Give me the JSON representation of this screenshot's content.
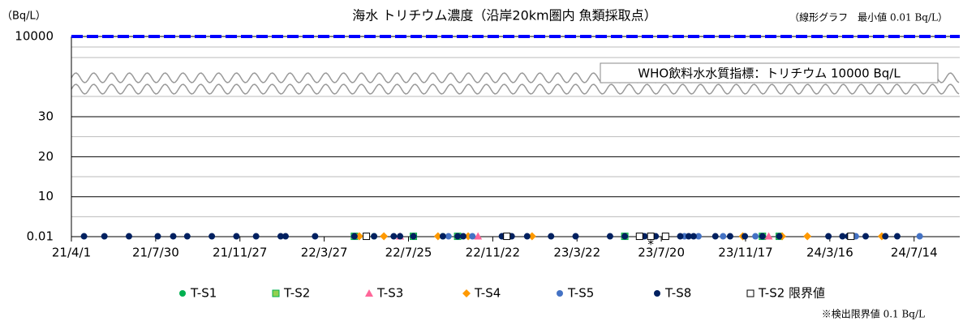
{
  "chart_data": {
    "type": "scatter",
    "title": "海水 トリチウム濃度（沿岸20km圏内 魚類採取点）",
    "subtitle": "（線形グラフ　最小値 0.01 Bq/L）",
    "y_label": "（Bq/L）",
    "footnote": "※検出限界値 0.1 Bq/L",
    "annotation": {
      "text": "*",
      "x": "23/7/5"
    },
    "xlim": [
      "21/4/1",
      "24/9/17"
    ],
    "xticks": [
      "21/4/1",
      "21/7/30",
      "21/11/27",
      "22/3/27",
      "22/7/25",
      "22/11/22",
      "23/3/22",
      "23/7/20",
      "23/11/17",
      "24/3/16",
      "24/7/14"
    ],
    "ylim": [
      0.01,
      10000
    ],
    "yticks": [
      0.01,
      10,
      20,
      30,
      10000
    ],
    "yminor_ticks": [
      5,
      15,
      25
    ],
    "ybreak": [
      30,
      10000
    ],
    "grid": true,
    "reference_line": {
      "value": 10000,
      "label": "WHO飲料水水質指標：トリチウム 10000 Bq/L",
      "color": "#0000ff"
    },
    "series": [
      {
        "name": "T-S1",
        "marker": "circle",
        "color": "#00b050",
        "x": [
          "22/6/6",
          "22/9/12",
          "23/5/29"
        ],
        "values": [
          0.1,
          0.1,
          0.1
        ]
      },
      {
        "name": "T-S2",
        "marker": "square",
        "color": "#92d050",
        "x": [
          "22/5/9",
          "22/8/1",
          "22/10/3",
          "23/5/29",
          "23/12/11",
          "24/1/4"
        ],
        "values": [
          0.1,
          0.1,
          0.1,
          0.1,
          0.1,
          0.1
        ]
      },
      {
        "name": "T-S3",
        "marker": "triangle",
        "color": "#ff6699",
        "x": [
          "22/7/13",
          "22/11/1",
          "23/12/20"
        ],
        "values": [
          0.1,
          0.1,
          0.1
        ]
      },
      {
        "name": "T-S4",
        "marker": "diamond",
        "color": "#ff9900",
        "x": [
          "22/5/16",
          "22/6/20",
          "22/9/5",
          "22/10/18",
          "23/1/17",
          "23/11/13",
          "24/1/8",
          "24/2/13",
          "24/5/29"
        ],
        "values": [
          0.1,
          0.1,
          0.1,
          0.1,
          0.1,
          0.1,
          0.1,
          0.1,
          0.1
        ]
      },
      {
        "name": "T-S5",
        "marker": "circle",
        "color": "#4472c4",
        "x": [
          "22/5/9",
          "22/9/20",
          "22/10/24",
          "23/8/22",
          "23/9/11",
          "23/10/16",
          "23/12/1",
          "24/4/22",
          "24/7/22"
        ],
        "values": [
          0.1,
          0.1,
          0.1,
          0.1,
          0.1,
          0.1,
          0.1,
          0.1,
          0.1
        ]
      },
      {
        "name": "T-S8",
        "marker": "circle",
        "color": "#002060",
        "x": [
          "21/4/19",
          "21/5/18",
          "21/6/22",
          "21/8/2",
          "21/8/24",
          "21/9/13",
          "21/10/18",
          "21/11/22",
          "21/12/20",
          "22/1/24",
          "22/1/31",
          "22/3/14",
          "22/5/9",
          "22/6/6",
          "22/7/4",
          "22/7/13",
          "22/8/1",
          "22/9/12",
          "22/10/3",
          "22/10/11",
          "22/12/5",
          "22/12/19",
          "23/1/10",
          "23/2/13",
          "23/3/20",
          "23/5/8",
          "23/5/29",
          "23/6/26",
          "23/7/12",
          "23/8/16",
          "23/8/28",
          "23/9/4",
          "23/10/5",
          "23/10/26",
          "23/11/16",
          "23/12/11",
          "24/1/4",
          "24/3/14",
          "24/4/3",
          "24/4/11",
          "24/5/6",
          "24/6/3",
          "24/6/20"
        ],
        "values": [
          0.1,
          0.1,
          0.1,
          0.1,
          0.1,
          0.1,
          0.1,
          0.1,
          0.1,
          0.1,
          0.1,
          0.1,
          0.1,
          0.1,
          0.1,
          0.1,
          0.1,
          0.1,
          0.1,
          0.1,
          0.1,
          0.1,
          0.1,
          0.1,
          0.1,
          0.1,
          0.1,
          0.1,
          0.1,
          0.1,
          0.1,
          0.1,
          0.1,
          0.1,
          0.1,
          0.1,
          0.1,
          0.1,
          0.1,
          0.1,
          0.1,
          0.1,
          0.1
        ]
      },
      {
        "name": "T-S2 限界値",
        "marker": "open-square",
        "color": "#000000",
        "x": [
          "22/5/26",
          "22/12/12",
          "23/6/19",
          "23/7/5",
          "23/7/26",
          "24/4/15"
        ],
        "values": [
          0.1,
          0.1,
          0.1,
          0.1,
          0.1,
          0.1
        ]
      }
    ]
  }
}
